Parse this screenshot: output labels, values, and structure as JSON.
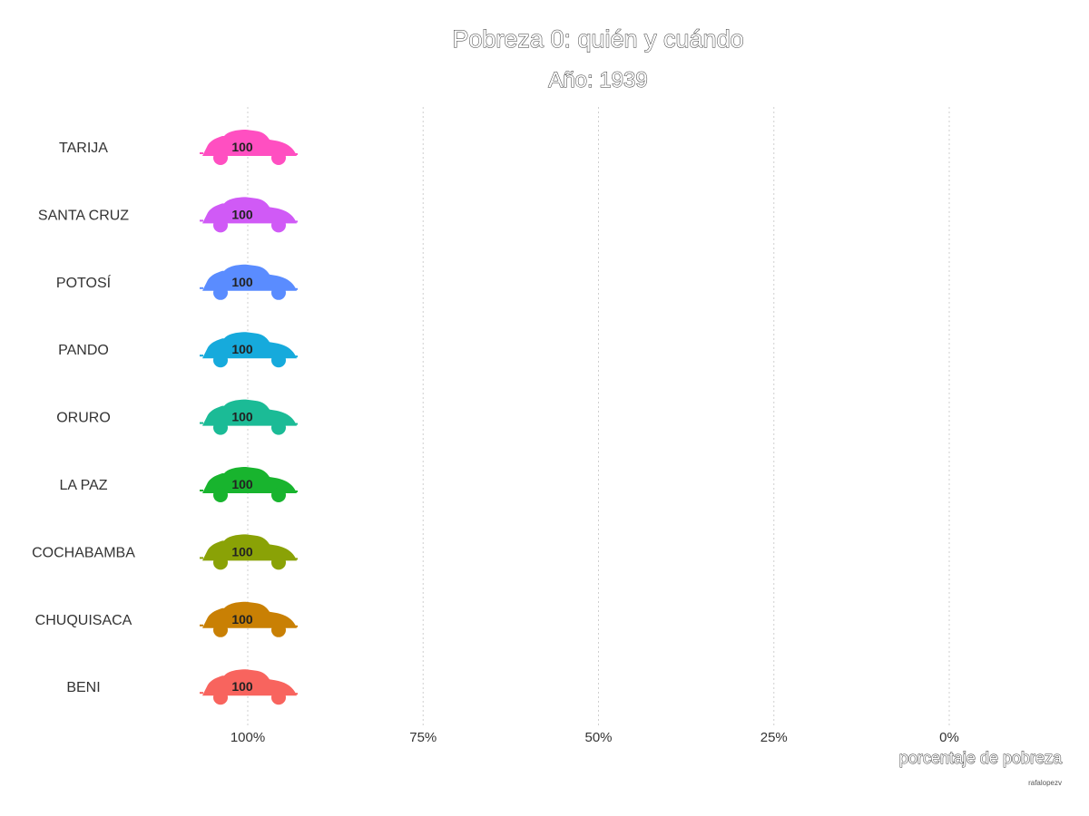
{
  "chart_data": {
    "type": "bar",
    "title": "Pobreza 0: quién y cuándo",
    "subtitle": "Año: 1939",
    "xlabel": "porcentaje de pobreza",
    "ylabel": "",
    "caption": "rafalopezv",
    "x_reversed": true,
    "xlim": [
      100,
      0
    ],
    "x_ticks": [
      100,
      75,
      50,
      25,
      0
    ],
    "x_tick_labels": [
      "100%",
      "75%",
      "50%",
      "25%",
      "0%"
    ],
    "grid": "vertical dotted",
    "legend": "none",
    "marker": "car-icon",
    "categories": [
      "TARIJA",
      "SANTA CRUZ",
      "POTOSÍ",
      "PANDO",
      "ORURO",
      "LA PAZ",
      "COCHABAMBA",
      "CHUQUISACA",
      "BENI"
    ],
    "values": [
      100,
      100,
      100,
      100,
      100,
      100,
      100,
      100,
      100
    ],
    "value_labels": [
      "100",
      "100",
      "100",
      "100",
      "100",
      "100",
      "100",
      "100",
      "100"
    ],
    "colors": [
      "#FF4FC1",
      "#D05AF6",
      "#5A8CFF",
      "#16AADC",
      "#1BBB96",
      "#18B42E",
      "#8AA206",
      "#C98004",
      "#F8645E"
    ]
  }
}
